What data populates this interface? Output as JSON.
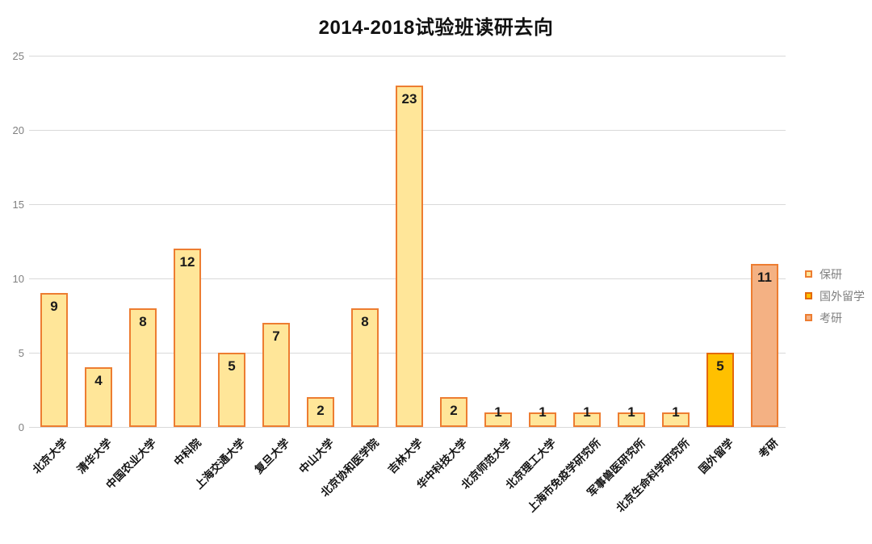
{
  "title": "2014-2018试验班读研去向",
  "chart_data": {
    "type": "bar",
    "title": "2014-2018试验班读研去向",
    "xlabel": "",
    "ylabel": "",
    "ylim": [
      0,
      25
    ],
    "yticks": [
      0,
      5,
      10,
      15,
      20,
      25
    ],
    "grid": true,
    "legend_position": "right",
    "categories": [
      "北京大学",
      "清华大学",
      "中国农业大学",
      "中科院",
      "上海交通大学",
      "复旦大学",
      "中山大学",
      "北京协和医学院",
      "吉林大学",
      "华中科技大学",
      "北京师范大学",
      "北京理工大学",
      "上海市免疫学研究所",
      "军事兽医研究所",
      "北京生命科学研究所",
      "国外留学",
      "考研"
    ],
    "values": [
      9,
      4,
      8,
      12,
      5,
      7,
      2,
      8,
      23,
      2,
      1,
      1,
      1,
      1,
      1,
      5,
      11
    ],
    "point_groups": [
      "保研",
      "保研",
      "保研",
      "保研",
      "保研",
      "保研",
      "保研",
      "保研",
      "保研",
      "保研",
      "保研",
      "保研",
      "保研",
      "保研",
      "保研",
      "国外留学",
      "考研"
    ],
    "series_styles": {
      "保研": {
        "fill": "#ffe699",
        "border": "#ed7d31"
      },
      "国外留学": {
        "fill": "#ffc000",
        "border": "#e4690b"
      },
      "考研": {
        "fill": "#f4b183",
        "border": "#ed7d31"
      }
    },
    "legend_entries": [
      {
        "label": "保研"
      },
      {
        "label": "国外留学"
      },
      {
        "label": "考研"
      }
    ],
    "colors": {
      "gridline": "#d9d9d9",
      "axis_tick_text": "#7f7f7f",
      "legend_text": "#7f7f7f",
      "value_label_text": "#1a1a1a"
    }
  }
}
